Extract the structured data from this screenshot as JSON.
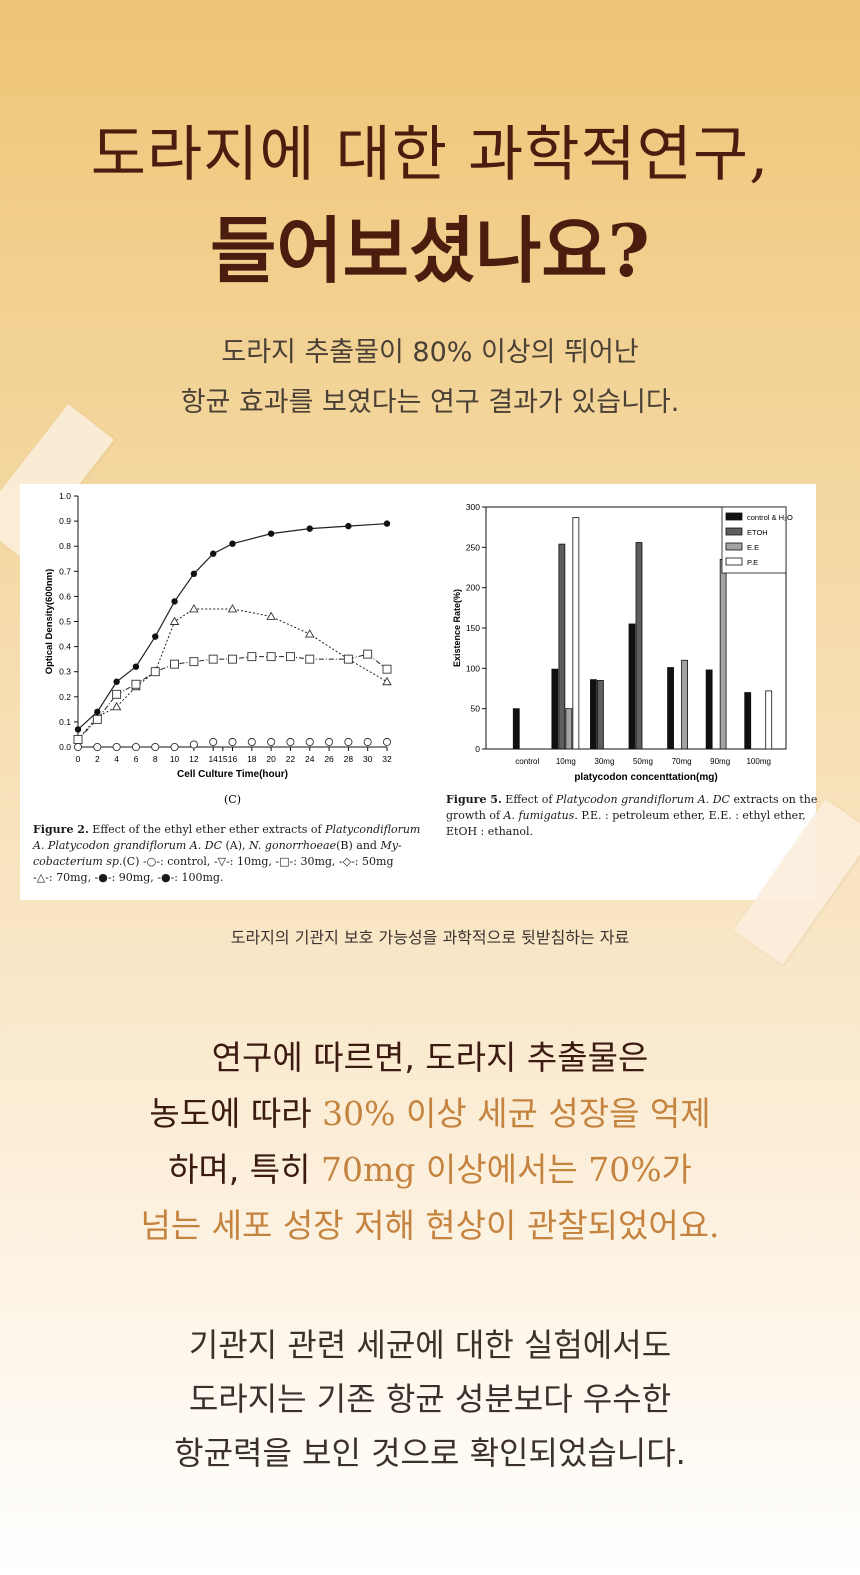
{
  "header": {
    "title_line1": "도라지에 대한 과학적연구,",
    "title_line2": "들어보셨나요?",
    "intro_line1": "도라지 추출물이 80% 이상의 뛰어난",
    "intro_line2": "항균 효과를 보였다는 연구 결과가 있습니다."
  },
  "figure_left": {
    "panel_label": "(C)",
    "caption_line1": [
      "Figure 2.",
      " Effect of the ethyl ether ether extracts of ",
      "Platycondiflorum"
    ],
    "caption_line2": [
      "A. Platycodon grandiflorum A. DC",
      " (A), ",
      "N. gonorrhoeae",
      "(B) and ",
      "My-"
    ],
    "caption_line3": [
      "cobacterium sp.",
      "(C) ",
      " -○-: control, -▽-: 10mg, -□-: 30mg, -◇-: 50mg"
    ],
    "caption_line4": "-△-: 70mg, -●-: 90mg, -●-: 100mg."
  },
  "figure_right": {
    "caption_line1": [
      "Figure 5.",
      " Effect of ",
      "Platycodon grandiflorum A. DC",
      "  extracts on the"
    ],
    "caption_line2": [
      "growth of ",
      "A. fumigatus",
      ". P.E. : petroleum ether, E.E. : ethyl ether,"
    ],
    "caption_line3": "EtOH : ethanol."
  },
  "source_note": "도라지의 기관지 보호 가능성을 과학적으로 뒷받침하는 자료",
  "paragraph1": {
    "line1": "연구에 따르면, 도라지 추출물은",
    "line2_plain": "농도에 따라 ",
    "line2_highlight": "30% 이상 세균 성장을 억제",
    "line3_plain": "하며, 특히 ",
    "line3_highlight_a": "70mg",
    "line3_middle": " 이상에서는 ",
    "line3_highlight_b": "70%가",
    "line4_highlight": "넘는 세포 성장 저해 현상이 관찰되었어요."
  },
  "paragraph2": {
    "line1": "기관지 관련 세균에 대한 실험에서도",
    "line2": "도라지는 기존 항균 성분보다 우수한",
    "line3": "항균력을 보인 것으로 확인되었습니다."
  },
  "colors": {
    "title": "#4a1d0f",
    "highlight": "#c4833f",
    "body_text": "#3b1a10"
  },
  "chart_data": [
    {
      "type": "line",
      "xlabel": "Cell Culture Time(hour)",
      "ylabel": "Optical Density(600nm)",
      "xlim": [
        0,
        32
      ],
      "ylim": [
        0,
        1.0
      ],
      "x_ticks": [
        0,
        2,
        4,
        6,
        8,
        10,
        12,
        14,
        15,
        16,
        18,
        20,
        22,
        24,
        26,
        28,
        30,
        32
      ],
      "y_ticks": [
        "0.0",
        "0.1",
        "0.2",
        "0.3",
        "0.4",
        "0.5",
        "0.6",
        "0.7",
        "0.8",
        "0.9",
        "1.0"
      ],
      "series": [
        {
          "name": "control",
          "marker": "open-circle",
          "style": "none",
          "points": [
            [
              0,
              0.0
            ],
            [
              2,
              0.0
            ],
            [
              4,
              0.0
            ],
            [
              6,
              0.0
            ],
            [
              8,
              0.0
            ],
            [
              10,
              0.0
            ],
            [
              12,
              0.01
            ],
            [
              14,
              0.02
            ],
            [
              16,
              0.02
            ],
            [
              18,
              0.02
            ],
            [
              20,
              0.02
            ],
            [
              22,
              0.02
            ],
            [
              24,
              0.02
            ],
            [
              26,
              0.02
            ],
            [
              28,
              0.02
            ],
            [
              30,
              0.02
            ],
            [
              32,
              0.02
            ]
          ]
        },
        {
          "name": "10mg",
          "marker": "open-triangle",
          "style": "dotted",
          "points": [
            [
              0,
              0.03
            ],
            [
              2,
              0.12
            ],
            [
              4,
              0.16
            ],
            [
              6,
              0.24
            ],
            [
              8,
              0.3
            ],
            [
              10,
              0.5
            ],
            [
              12,
              0.55
            ],
            [
              16,
              0.55
            ],
            [
              20,
              0.52
            ],
            [
              24,
              0.45
            ],
            [
              28,
              0.35
            ],
            [
              32,
              0.26
            ]
          ]
        },
        {
          "name": "30mg",
          "marker": "open-square",
          "style": "dashdot",
          "points": [
            [
              0,
              0.03
            ],
            [
              2,
              0.11
            ],
            [
              4,
              0.21
            ],
            [
              6,
              0.25
            ],
            [
              8,
              0.3
            ],
            [
              10,
              0.33
            ],
            [
              12,
              0.34
            ],
            [
              14,
              0.35
            ],
            [
              16,
              0.35
            ],
            [
              18,
              0.36
            ],
            [
              20,
              0.36
            ],
            [
              22,
              0.36
            ],
            [
              24,
              0.35
            ],
            [
              28,
              0.35
            ],
            [
              30,
              0.37
            ],
            [
              32,
              0.31
            ]
          ]
        },
        {
          "name": "90mg",
          "marker": "filled-circle",
          "style": "solid",
          "points": [
            [
              0,
              0.07
            ],
            [
              2,
              0.14
            ],
            [
              4,
              0.26
            ],
            [
              6,
              0.32
            ],
            [
              8,
              0.44
            ],
            [
              10,
              0.58
            ],
            [
              12,
              0.69
            ],
            [
              14,
              0.77
            ],
            [
              16,
              0.81
            ],
            [
              20,
              0.85
            ],
            [
              24,
              0.87
            ],
            [
              28,
              0.88
            ],
            [
              32,
              0.89
            ]
          ]
        }
      ]
    },
    {
      "type": "bar",
      "xlabel": "platycodon concenttation(mg)",
      "ylabel": "Existence Rate(%)",
      "ylim": [
        0,
        300
      ],
      "y_ticks": [
        "0",
        "50",
        "100",
        "150",
        "200",
        "250",
        "300"
      ],
      "legend_position": "top-right",
      "categories": [
        "control",
        "10mg",
        "30mg",
        "50mg",
        "70mg",
        "90mg",
        "100mg"
      ],
      "series": [
        {
          "name": "control & H₂O",
          "color": "#111111",
          "values": [
            50,
            99,
            86,
            155,
            101,
            98,
            70
          ]
        },
        {
          "name": "ETOH",
          "color": "#5e5e5e",
          "values": [
            0,
            254,
            85,
            256,
            0,
            0,
            0
          ]
        },
        {
          "name": "E.E",
          "color": "#a3a3a3",
          "values": [
            0,
            50,
            0,
            0,
            110,
            235,
            0
          ]
        },
        {
          "name": "P.E",
          "color": "#ffffff",
          "values": [
            0,
            287,
            0,
            0,
            0,
            0,
            72
          ]
        }
      ]
    }
  ]
}
